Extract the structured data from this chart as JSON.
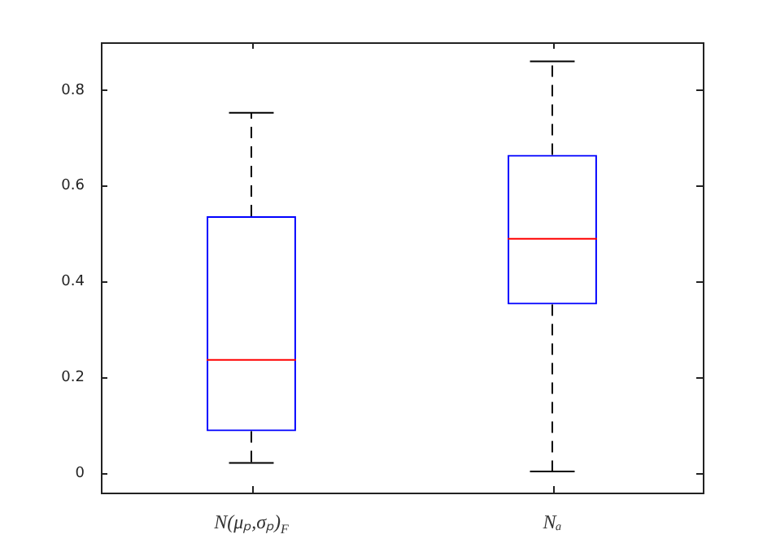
{
  "chart_data": {
    "type": "box",
    "categories": [
      "N(μₚ,σₚ)$_{F}$",
      "Nₐ"
    ],
    "color": "#0000ff",
    "line_style": "dashed",
    "boxes": [
      {
        "low": 0.022,
        "q1": 0.088,
        "median": 0.237,
        "q3": 0.537,
        "high": 0.753
      },
      {
        "low": 0.004,
        "q1": 0.353,
        "median": 0.49,
        "q3": 0.665,
        "high": 0.86
      }
    ],
    "ylim": [
      -0.04,
      0.9
    ],
    "yticks": [
      0,
      0.2,
      0.4,
      0.6,
      0.8
    ],
    "grid": false,
    "legend": false
  }
}
